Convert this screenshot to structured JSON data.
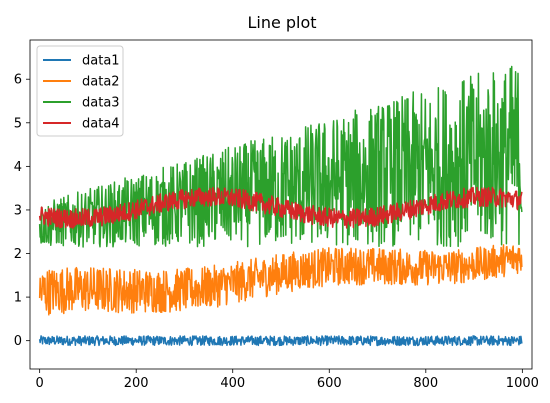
{
  "chart_data": {
    "type": "line",
    "title": "Line plot",
    "xlabel": "",
    "ylabel": "",
    "xlim": [
      -20,
      1020
    ],
    "ylim": [
      -0.65,
      6.9
    ],
    "xticks": [
      0,
      200,
      400,
      600,
      800,
      1000
    ],
    "yticks": [
      0,
      1,
      2,
      3,
      4,
      5,
      6
    ],
    "grid": false,
    "legend": "top-left",
    "samples": 1000,
    "series": [
      {
        "name": "data1",
        "color": "#1f77b4",
        "mean_start": 0.0,
        "mean_end": 0.0,
        "amp_start": 0.22,
        "amp_end": 0.22,
        "wave": 0.0
      },
      {
        "name": "data2",
        "color": "#ff7f0e",
        "mean_start": 1.0,
        "mean_end": 1.95,
        "amp_start": 1.1,
        "amp_end": 0.75,
        "wave": 0.12
      },
      {
        "name": "data3",
        "color": "#2ca02c",
        "mean_start": 2.65,
        "mean_end": 4.3,
        "amp_start": 1.0,
        "amp_end": 4.3,
        "wave": 0.0
      },
      {
        "name": "data4",
        "color": "#d62728",
        "mean_start": 3.05,
        "mean_end": 3.05,
        "amp_start": 0.45,
        "amp_end": 0.45,
        "wave": 0.25
      }
    ]
  }
}
